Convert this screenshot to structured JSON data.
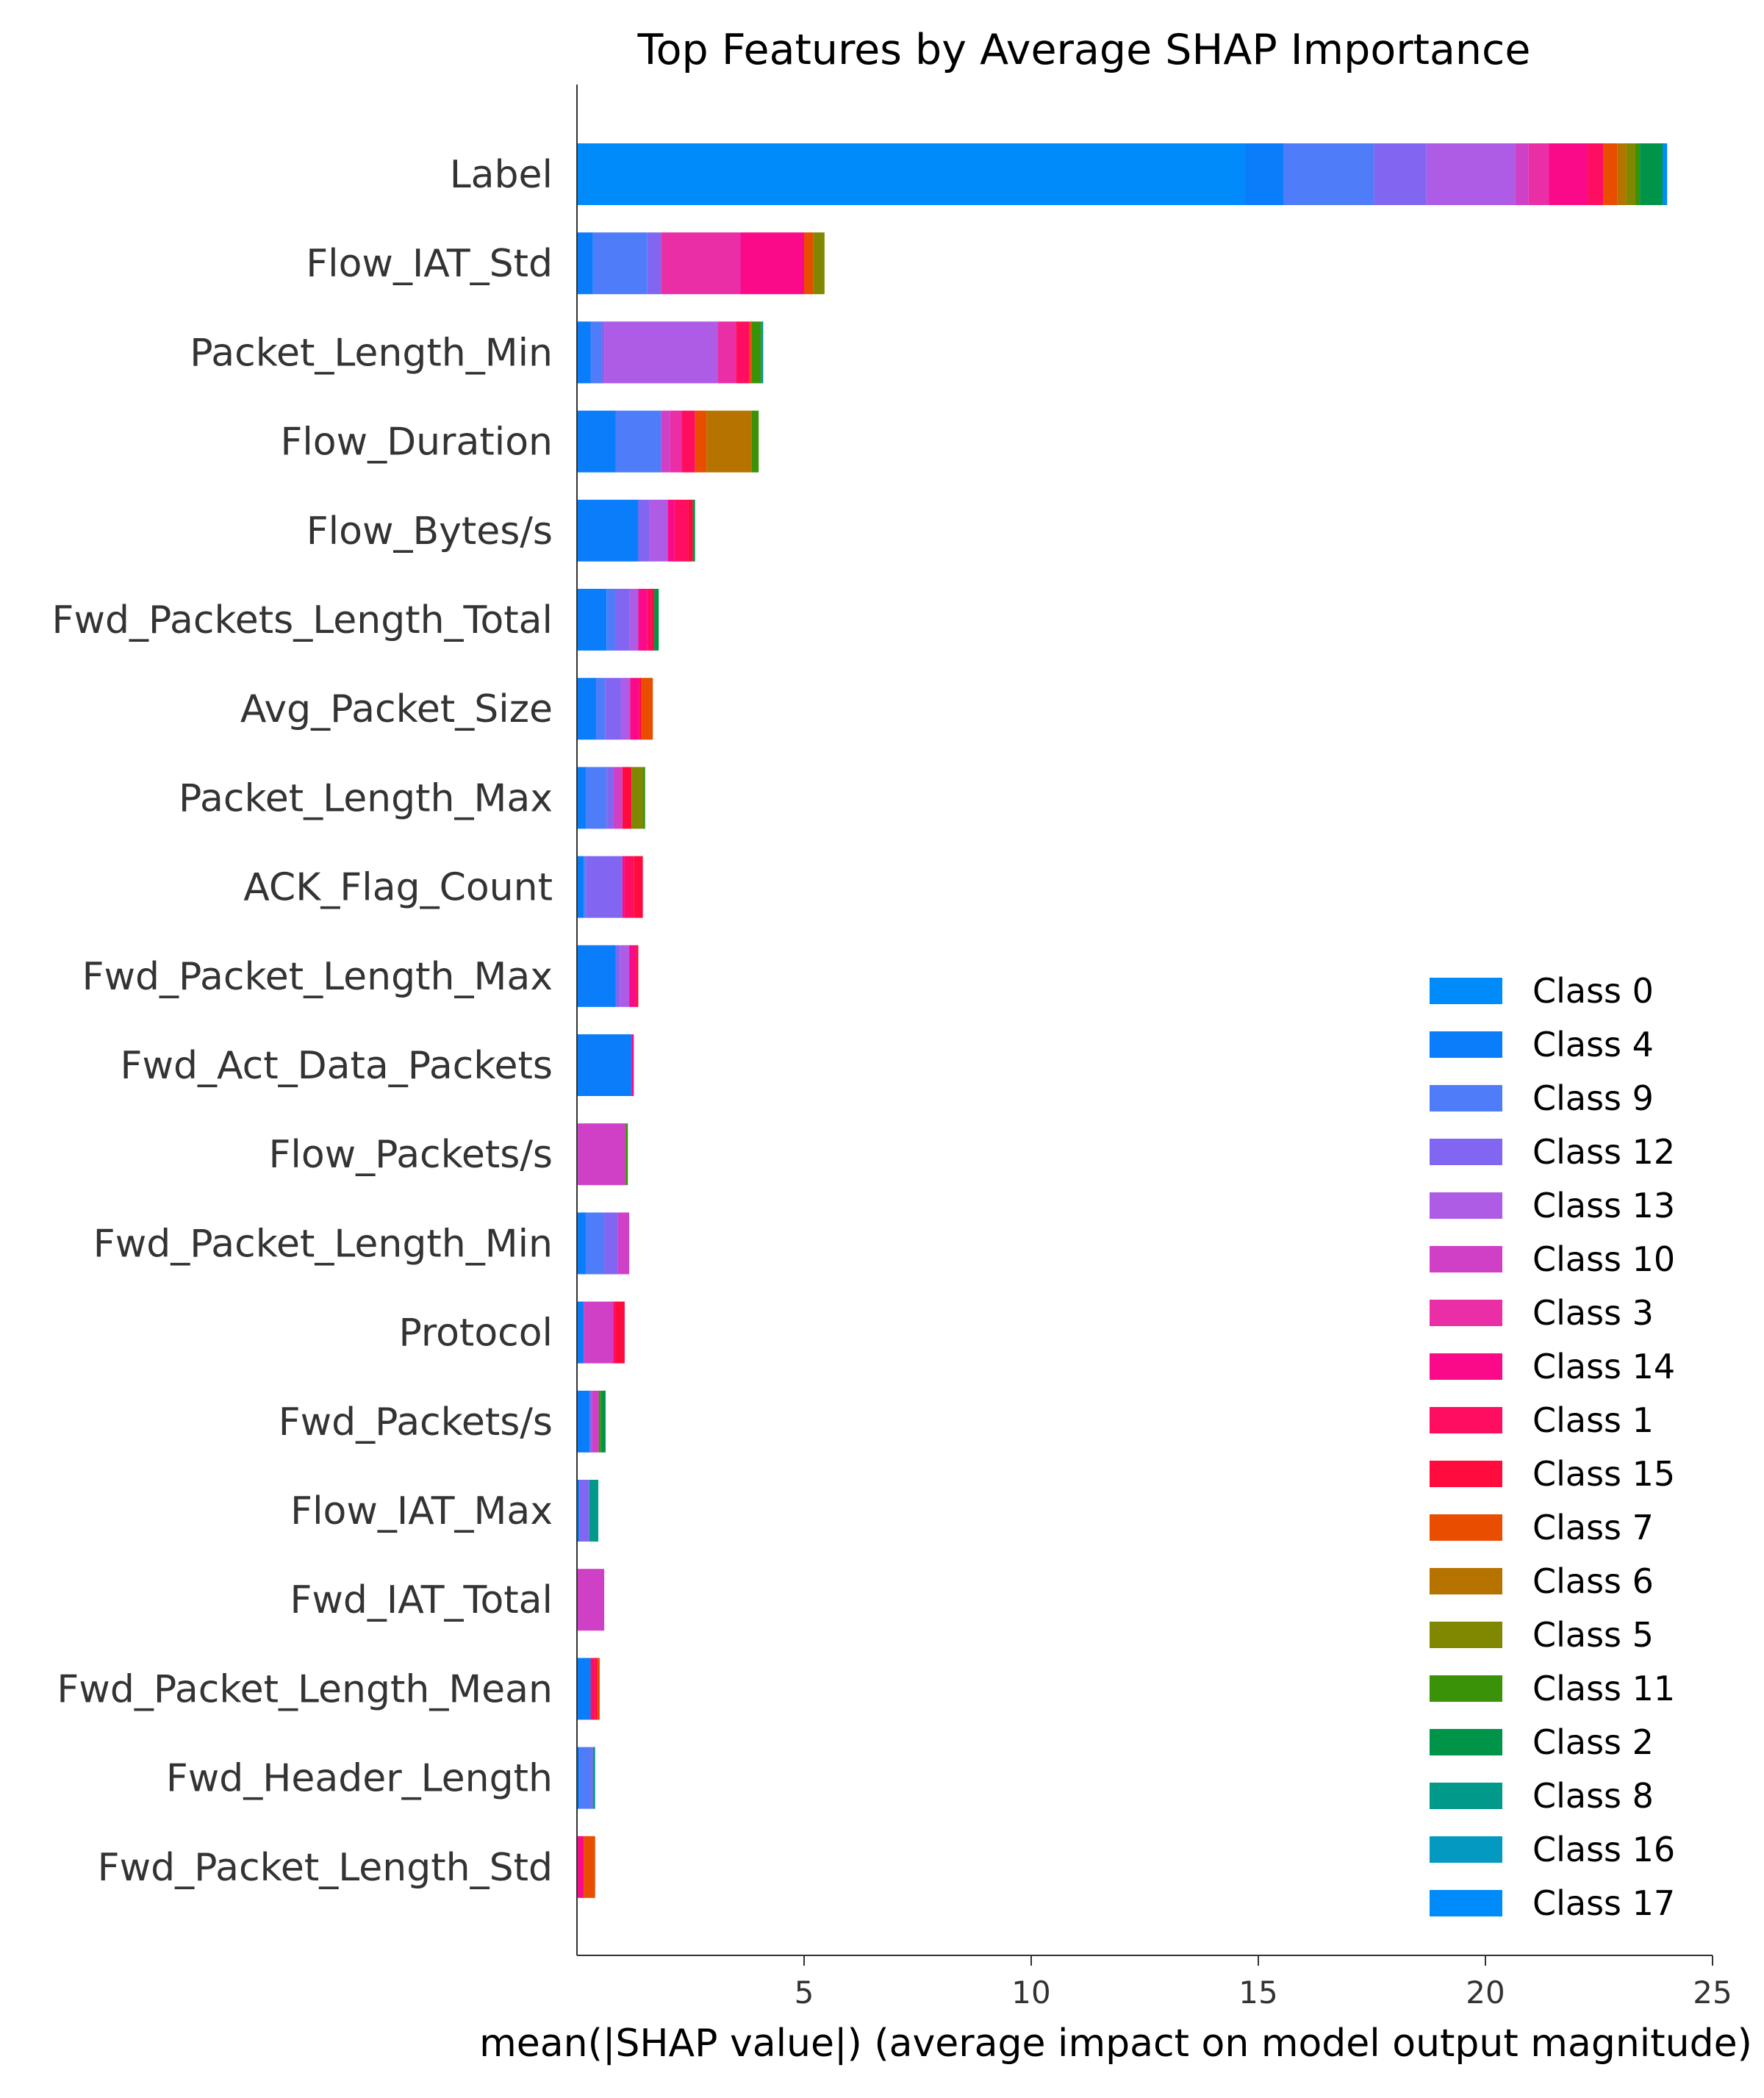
{
  "chart_data": {
    "type": "bar",
    "orientation": "horizontal",
    "stacked": true,
    "title": "Top Features by Average SHAP Importance",
    "xlabel": "mean(|SHAP value|) (average impact on model output magnitude)",
    "ylabel": "",
    "xlim": [
      0,
      25
    ],
    "xticks": [
      5,
      10,
      15,
      20,
      25
    ],
    "grid": false,
    "legend_position": "lower-right",
    "categories": [
      "Label",
      "Flow_IAT_Std",
      "Packet_Length_Min",
      "Flow_Duration",
      "Flow_Bytes/s",
      "Fwd_Packets_Length_Total",
      "Avg_Packet_Size",
      "Packet_Length_Max",
      "ACK_Flag_Count",
      "Fwd_Packet_Length_Max",
      "Fwd_Act_Data_Packets",
      "Flow_Packets/s",
      "Fwd_Packet_Length_Min",
      "Protocol",
      "Fwd_Packets/s",
      "Flow_IAT_Max",
      "Fwd_IAT_Total",
      "Fwd_Packet_Length_Mean",
      "Fwd_Header_Length",
      "Fwd_Packet_Length_Std"
    ],
    "series": [
      {
        "name": "Class 0",
        "color": "#008bfb",
        "values": [
          14.7,
          0.0,
          0.0,
          0.0,
          0.0,
          0.0,
          0.0,
          0.0,
          0.0,
          0.0,
          0.0,
          0.0,
          0.0,
          0.0,
          0.0,
          0.0,
          0.0,
          0.0,
          0.0,
          0.0
        ]
      },
      {
        "name": "Class 4",
        "color": "#0a7dfb",
        "values": [
          0.85,
          0.35,
          0.3,
          0.85,
          1.35,
          0.65,
          0.42,
          0.2,
          0.15,
          0.85,
          1.2,
          0.02,
          0.2,
          0.15,
          0.28,
          0.05,
          0.0,
          0.3,
          0.05,
          0.0
        ]
      },
      {
        "name": "Class 9",
        "color": "#4f7dfa",
        "values": [
          2.0,
          1.2,
          0.25,
          1.0,
          0.0,
          0.2,
          0.2,
          0.45,
          0.05,
          0.0,
          0.0,
          0.0,
          0.4,
          0.0,
          0.0,
          0.0,
          0.0,
          0.0,
          0.25,
          0.0
        ]
      },
      {
        "name": "Class 12",
        "color": "#8266f1",
        "values": [
          1.15,
          0.3,
          0.05,
          0.0,
          0.25,
          0.3,
          0.35,
          0.15,
          0.8,
          0.1,
          0.0,
          0.0,
          0.3,
          0.0,
          0.05,
          0.22,
          0.0,
          0.0,
          0.05,
          0.0
        ]
      },
      {
        "name": "Class 13",
        "color": "#ae5be6",
        "values": [
          1.95,
          0.0,
          2.5,
          0.0,
          0.4,
          0.2,
          0.2,
          0.0,
          0.0,
          0.2,
          0.0,
          0.0,
          0.0,
          0.0,
          0.0,
          0.0,
          0.0,
          0.0,
          0.0,
          0.0
        ]
      },
      {
        "name": "Class 10",
        "color": "#d040c6",
        "values": [
          0.3,
          0.0,
          0.0,
          0.2,
          0.0,
          0.0,
          0.0,
          0.2,
          0.0,
          0.0,
          0.0,
          1.05,
          0.25,
          0.65,
          0.15,
          0.0,
          0.6,
          0.0,
          0.0,
          0.0
        ]
      },
      {
        "name": "Class 3",
        "color": "#e92ea6",
        "values": [
          0.45,
          1.75,
          0.4,
          0.25,
          0.0,
          0.0,
          0.0,
          0.0,
          0.0,
          0.0,
          0.0,
          0.0,
          0.0,
          0.0,
          0.0,
          0.0,
          0.0,
          0.0,
          0.0,
          0.0
        ]
      },
      {
        "name": "Class 14",
        "color": "#fa0a88",
        "values": [
          0.85,
          1.4,
          0.0,
          0.0,
          0.15,
          0.2,
          0.2,
          0.0,
          0.05,
          0.15,
          0.05,
          0.0,
          0.0,
          0.0,
          0.0,
          0.0,
          0.0,
          0.0,
          0.0,
          0.15
        ]
      },
      {
        "name": "Class 1",
        "color": "#ff0d60",
        "values": [
          0.35,
          0.0,
          0.3,
          0.3,
          0.3,
          0.1,
          0.0,
          0.0,
          0.2,
          0.0,
          0.0,
          0.0,
          0.0,
          0.05,
          0.0,
          0.0,
          0.0,
          0.1,
          0.0,
          0.0
        ]
      },
      {
        "name": "Class 15",
        "color": "#ff0b3d",
        "values": [
          0.0,
          0.0,
          0.0,
          0.0,
          0.1,
          0.05,
          0.05,
          0.2,
          0.2,
          0.05,
          0.0,
          0.0,
          0.0,
          0.2,
          0.0,
          0.0,
          0.0,
          0.05,
          0.0,
          0.0
        ]
      },
      {
        "name": "Class 7",
        "color": "#e84d00",
        "values": [
          0.3,
          0.2,
          0.05,
          0.25,
          0.0,
          0.0,
          0.25,
          0.0,
          0.0,
          0.0,
          0.0,
          0.0,
          0.0,
          0.0,
          0.0,
          0.0,
          0.0,
          0.05,
          0.0,
          0.25
        ]
      },
      {
        "name": "Class 6",
        "color": "#b67300",
        "values": [
          0.2,
          0.0,
          0.0,
          1.0,
          0.0,
          0.0,
          0.0,
          0.0,
          0.0,
          0.0,
          0.0,
          0.0,
          0.0,
          0.0,
          0.0,
          0.0,
          0.0,
          0.0,
          0.0,
          0.0
        ]
      },
      {
        "name": "Class 5",
        "color": "#7f8800",
        "values": [
          0.2,
          0.25,
          0.0,
          0.0,
          0.0,
          0.0,
          0.0,
          0.25,
          0.0,
          0.0,
          0.0,
          0.0,
          0.0,
          0.0,
          0.0,
          0.0,
          0.0,
          0.0,
          0.0,
          0.0
        ]
      },
      {
        "name": "Class 11",
        "color": "#3a9209",
        "values": [
          0.1,
          0.0,
          0.2,
          0.15,
          0.0,
          0.0,
          0.0,
          0.05,
          0.0,
          0.0,
          0.0,
          0.05,
          0.0,
          0.0,
          0.05,
          0.0,
          0.0,
          0.0,
          0.0,
          0.0
        ]
      },
      {
        "name": "Class 2",
        "color": "#009448",
        "values": [
          0.5,
          0.0,
          0.0,
          0.0,
          0.05,
          0.1,
          0.0,
          0.0,
          0.0,
          0.0,
          0.0,
          0.0,
          0.0,
          0.0,
          0.1,
          0.0,
          0.0,
          0.0,
          0.0,
          0.0
        ]
      },
      {
        "name": "Class 8",
        "color": "#00998a",
        "values": [
          0.0,
          0.0,
          0.05,
          0.0,
          0.0,
          0.0,
          0.0,
          0.0,
          0.0,
          0.0,
          0.0,
          0.0,
          0.0,
          0.0,
          0.0,
          0.2,
          0.0,
          0.0,
          0.05,
          0.0
        ]
      },
      {
        "name": "Class 16",
        "color": "#0399c0",
        "values": [
          0.0,
          0.0,
          0.0,
          0.0,
          0.0,
          0.0,
          0.0,
          0.0,
          0.0,
          0.0,
          0.0,
          0.0,
          0.0,
          0.0,
          0.0,
          0.0,
          0.0,
          0.0,
          0.0,
          0.0
        ]
      },
      {
        "name": "Class 17",
        "color": "#008bfb",
        "values": [
          0.1,
          0.0,
          0.0,
          0.0,
          0.0,
          0.0,
          0.0,
          0.0,
          0.0,
          0.0,
          0.0,
          0.0,
          0.0,
          0.0,
          0.0,
          0.0,
          0.0,
          0.0,
          0.0,
          0.0
        ]
      }
    ]
  }
}
